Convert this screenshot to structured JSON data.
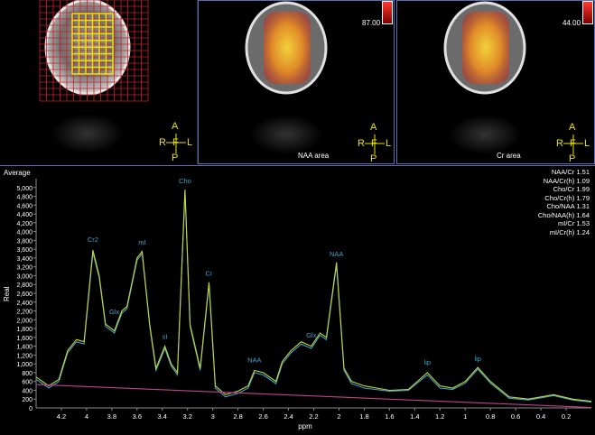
{
  "panels": [
    {
      "id": "grid",
      "label": "",
      "colorbar_value": ""
    },
    {
      "id": "naa",
      "label": "NAA area",
      "colorbar_value": "87.00"
    },
    {
      "id": "cr",
      "label": "Cr area",
      "colorbar_value": "44.00"
    }
  ],
  "orientation": {
    "anterior": "A",
    "posterior": "P",
    "right": "R",
    "left": "L",
    "foot": "F"
  },
  "spectrum": {
    "title": "Average",
    "ylabel": "Real",
    "xlabel": "ppm",
    "ratios": [
      "NAA/Cr 1.51",
      "NAA/Cr(h) 1.09",
      "Cho/Cr 1.99",
      "Cho/Cr(h) 1.79",
      "Cho/NAA 1.31",
      "Cho/NAA(h) 1.64",
      "mI/Cr 1.53",
      "mI/Cr(h) 1.24"
    ],
    "peak_labels": [
      {
        "text": "Cr2",
        "ppm": 3.95,
        "y": 3680
      },
      {
        "text": "Glx",
        "ppm": 3.78,
        "y": 2050
      },
      {
        "text": "mI",
        "ppm": 3.56,
        "y": 3620
      },
      {
        "text": "sI",
        "ppm": 3.38,
        "y": 1480
      },
      {
        "text": "Cho",
        "ppm": 3.22,
        "y": 5020
      },
      {
        "text": "Cr",
        "ppm": 3.03,
        "y": 2920
      },
      {
        "text": "NAA",
        "ppm": 2.67,
        "y": 950
      },
      {
        "text": "Glx",
        "ppm": 2.22,
        "y": 1520
      },
      {
        "text": "NAA",
        "ppm": 2.02,
        "y": 3360
      },
      {
        "text": "lip",
        "ppm": 1.3,
        "y": 900
      },
      {
        "text": "lip",
        "ppm": 0.9,
        "y": 980
      }
    ]
  },
  "colors": {
    "accent": "#5b6fb7",
    "grid_red": "#c8202a",
    "voxel_yellow": "#e8e20b",
    "fit_line": "#c6d43a",
    "data_line": "#3fa6c9",
    "baseline": "#c2418f",
    "label_blue": "#3fa6c9"
  },
  "chart_data": {
    "type": "line",
    "xlabel": "ppm",
    "ylabel": "Real",
    "xlim": [
      4.4,
      0.0
    ],
    "ylim": [
      0,
      5200
    ],
    "x_ticks": [
      4.2,
      4,
      3.8,
      3.6,
      3.4,
      3.2,
      3,
      2.8,
      2.6,
      2.4,
      2.2,
      2,
      1.8,
      1.6,
      1.4,
      1.2,
      1,
      0.8,
      0.6,
      0.4,
      0.2
    ],
    "y_ticks": [
      0,
      200,
      400,
      600,
      800,
      1000,
      1200,
      1400,
      1600,
      1800,
      2000,
      2200,
      2400,
      2600,
      2800,
      3000,
      3200,
      3400,
      3600,
      3800,
      4000,
      4200,
      4400,
      4600,
      4800,
      5000
    ],
    "series": [
      {
        "color": "#c6d43a",
        "points": [
          [
            4.4,
            700
          ],
          [
            4.3,
            500
          ],
          [
            4.22,
            650
          ],
          [
            4.15,
            1300
          ],
          [
            4.08,
            1550
          ],
          [
            4.02,
            1500
          ],
          [
            3.95,
            3580
          ],
          [
            3.9,
            3000
          ],
          [
            3.85,
            1900
          ],
          [
            3.78,
            1750
          ],
          [
            3.72,
            2200
          ],
          [
            3.68,
            2300
          ],
          [
            3.6,
            3400
          ],
          [
            3.56,
            3550
          ],
          [
            3.5,
            1900
          ],
          [
            3.45,
            900
          ],
          [
            3.38,
            1400
          ],
          [
            3.33,
            1000
          ],
          [
            3.28,
            800
          ],
          [
            3.22,
            4950
          ],
          [
            3.18,
            1900
          ],
          [
            3.1,
            900
          ],
          [
            3.03,
            2850
          ],
          [
            2.98,
            500
          ],
          [
            2.9,
            300
          ],
          [
            2.8,
            380
          ],
          [
            2.72,
            500
          ],
          [
            2.67,
            850
          ],
          [
            2.6,
            800
          ],
          [
            2.5,
            600
          ],
          [
            2.45,
            1050
          ],
          [
            2.38,
            1300
          ],
          [
            2.3,
            1500
          ],
          [
            2.22,
            1400
          ],
          [
            2.15,
            1700
          ],
          [
            2.1,
            1600
          ],
          [
            2.02,
            3300
          ],
          [
            1.96,
            900
          ],
          [
            1.9,
            600
          ],
          [
            1.8,
            500
          ],
          [
            1.6,
            400
          ],
          [
            1.45,
            420
          ],
          [
            1.3,
            800
          ],
          [
            1.2,
            500
          ],
          [
            1.1,
            450
          ],
          [
            1.0,
            600
          ],
          [
            0.9,
            920
          ],
          [
            0.8,
            600
          ],
          [
            0.65,
            250
          ],
          [
            0.5,
            200
          ],
          [
            0.4,
            250
          ],
          [
            0.3,
            300
          ],
          [
            0.15,
            200
          ],
          [
            0.0,
            150
          ]
        ]
      },
      {
        "color": "#3fa6c9",
        "points": [
          [
            4.4,
            650
          ],
          [
            4.3,
            450
          ],
          [
            4.22,
            600
          ],
          [
            4.15,
            1250
          ],
          [
            4.08,
            1500
          ],
          [
            4.02,
            1450
          ],
          [
            3.95,
            3520
          ],
          [
            3.9,
            2950
          ],
          [
            3.85,
            1850
          ],
          [
            3.78,
            1700
          ],
          [
            3.72,
            2150
          ],
          [
            3.68,
            2250
          ],
          [
            3.6,
            3350
          ],
          [
            3.56,
            3500
          ],
          [
            3.5,
            1850
          ],
          [
            3.45,
            850
          ],
          [
            3.38,
            1350
          ],
          [
            3.33,
            950
          ],
          [
            3.28,
            750
          ],
          [
            3.22,
            4900
          ],
          [
            3.18,
            1850
          ],
          [
            3.1,
            850
          ],
          [
            3.03,
            2800
          ],
          [
            2.98,
            450
          ],
          [
            2.9,
            250
          ],
          [
            2.8,
            330
          ],
          [
            2.72,
            450
          ],
          [
            2.67,
            800
          ],
          [
            2.6,
            750
          ],
          [
            2.5,
            550
          ],
          [
            2.45,
            1000
          ],
          [
            2.38,
            1250
          ],
          [
            2.3,
            1450
          ],
          [
            2.22,
            1350
          ],
          [
            2.15,
            1650
          ],
          [
            2.1,
            1550
          ],
          [
            2.02,
            3250
          ],
          [
            1.96,
            850
          ],
          [
            1.9,
            550
          ],
          [
            1.8,
            450
          ],
          [
            1.6,
            380
          ],
          [
            1.45,
            400
          ],
          [
            1.3,
            750
          ],
          [
            1.2,
            450
          ],
          [
            1.1,
            420
          ],
          [
            1.0,
            560
          ],
          [
            0.9,
            880
          ],
          [
            0.8,
            560
          ],
          [
            0.65,
            220
          ],
          [
            0.5,
            180
          ],
          [
            0.4,
            230
          ],
          [
            0.3,
            280
          ],
          [
            0.15,
            180
          ],
          [
            0.0,
            130
          ]
        ]
      },
      {
        "color": "#c2418f",
        "points": [
          [
            4.4,
            530
          ],
          [
            0.0,
            10
          ]
        ]
      }
    ]
  }
}
